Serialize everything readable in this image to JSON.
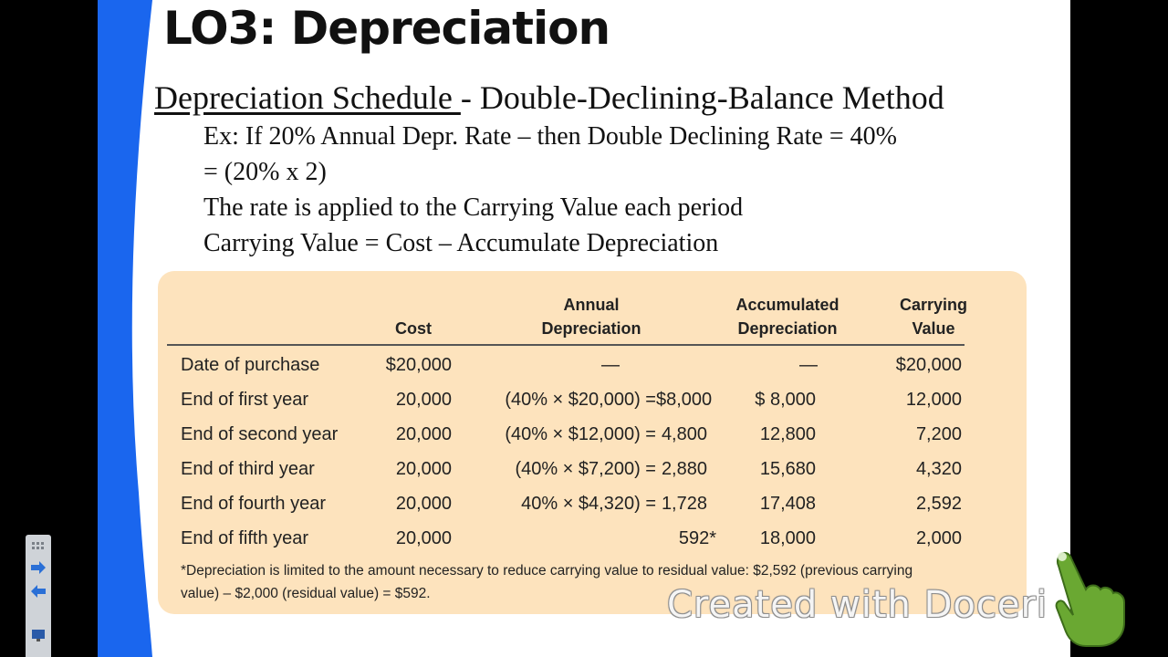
{
  "slide": {
    "title": "LO3:  Depreciation",
    "subtitle_underlined": "Depreciation Schedule ",
    "subtitle_rest": "- Double-Declining-Balance Method",
    "lines": [
      "Ex:  If 20% Annual Depr. Rate – then Double Declining Rate = 40%",
      "= (20% x 2)",
      "The rate is applied to the Carrying Value each period",
      "Carrying Value = Cost – Accumulate Depreciation"
    ]
  },
  "table": {
    "headers": {
      "cost": "Cost",
      "annual_1": "Annual",
      "annual_2": "Depreciation",
      "accum_1": "Accumulated",
      "accum_2": "Depreciation",
      "carry_1": "Carrying",
      "carry_2": "Value"
    },
    "rows": [
      {
        "label": "Date of purchase",
        "cost": "$20,000",
        "calc": "",
        "annual": "—",
        "accum": "—",
        "carrying": "$20,000"
      },
      {
        "label": "End of first year",
        "cost": "20,000",
        "calc": "(40% × $20,000) =",
        "annual": "$8,000",
        "accum": "$ 8,000",
        "carrying": "12,000"
      },
      {
        "label": "End of second year",
        "cost": "20,000",
        "calc": "(40% × $12,000) =",
        "annual": "4,800",
        "accum": "12,800",
        "carrying": "7,200"
      },
      {
        "label": "End of third year",
        "cost": "20,000",
        "calc": "(40% × $7,200) =",
        "annual": "2,880",
        "accum": "15,680",
        "carrying": "4,320"
      },
      {
        "label": "End of fourth year",
        "cost": "20,000",
        "calc": "40% × $4,320) =",
        "annual": "1,728",
        "accum": "17,408",
        "carrying": "2,592"
      },
      {
        "label": "End of fifth year",
        "cost": "20,000",
        "calc": "",
        "annual": "592*",
        "accum": "18,000",
        "carrying": "2,000"
      }
    ],
    "footnote_1": "*Depreciation is limited to the amount necessary to reduce carrying value to residual value: $2,592 (previous carrying",
    "footnote_2": "value) – $2,000 (residual value) = $592."
  },
  "overlay": {
    "watermark": "Created with Doceri"
  },
  "colors": {
    "accent_blue": "#1a66ee",
    "table_bg": "#fde3bd"
  },
  "icons": [
    "grid-icon",
    "arrow-right-icon",
    "arrow-left-icon",
    "monitor-icon",
    "pointing-hand-icon"
  ]
}
